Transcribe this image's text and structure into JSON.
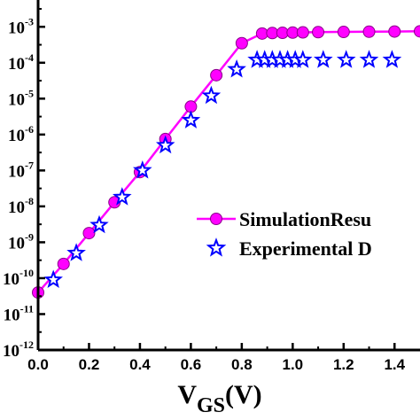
{
  "chart_data": {
    "type": "scatter",
    "xlabel": {
      "main": "V",
      "sub": "GS",
      "unit": "(V)"
    },
    "ylabel": "",
    "y_scale": "log",
    "xlim": [
      0.0,
      1.5
    ],
    "ylim_exponent": [
      -12,
      -2.5
    ],
    "x_ticks": [
      "0.0",
      "0.2",
      "0.4",
      "0.6",
      "0.8",
      "1.0",
      "1.2",
      "1.4"
    ],
    "y_ticks": [
      {
        "base": "10",
        "exp": "-3"
      },
      {
        "base": "10",
        "exp": "-4"
      },
      {
        "base": "10",
        "exp": "-5"
      },
      {
        "base": "10",
        "exp": "-6"
      },
      {
        "base": "10",
        "exp": "-7"
      },
      {
        "base": "10",
        "exp": "-8"
      },
      {
        "base": "10",
        "exp": "-9"
      },
      {
        "base": "10",
        "exp": "-10"
      },
      {
        "base": "10",
        "exp": "-11"
      },
      {
        "base": "10",
        "exp": "-12"
      }
    ],
    "legend_position": "center-right",
    "series": [
      {
        "name": "SimulationResu",
        "color": "#ff00ff",
        "marker": "circle",
        "line": true,
        "x": [
          0.0,
          0.1,
          0.2,
          0.3,
          0.4,
          0.5,
          0.6,
          0.7,
          0.8,
          0.88,
          0.92,
          0.96,
          1.0,
          1.04,
          1.1,
          1.2,
          1.3,
          1.4,
          1.5
        ],
        "y": [
          4e-11,
          2.5e-10,
          1.8e-09,
          1.3e-08,
          9e-08,
          7.5e-07,
          6e-06,
          4.5e-05,
          0.00035,
          0.00065,
          0.00067,
          0.00068,
          0.00069,
          0.0007,
          0.00071,
          0.00072,
          0.00073,
          0.00074,
          0.00075
        ]
      },
      {
        "name": "Experimental D",
        "color": "#0000ff",
        "marker": "star",
        "line": false,
        "x": [
          0.06,
          0.15,
          0.24,
          0.33,
          0.41,
          0.5,
          0.6,
          0.68,
          0.78,
          0.86,
          0.89,
          0.92,
          0.95,
          0.98,
          1.01,
          1.04,
          1.12,
          1.21,
          1.3,
          1.39
        ],
        "y": [
          9e-11,
          5e-10,
          3e-09,
          1.8e-08,
          1e-07,
          5e-07,
          2.5e-06,
          1.2e-05,
          6.5e-05,
          0.00012,
          0.00012,
          0.00012,
          0.00012,
          0.00012,
          0.00012,
          0.00012,
          0.00012,
          0.00012,
          0.00012,
          0.00012
        ]
      }
    ]
  }
}
